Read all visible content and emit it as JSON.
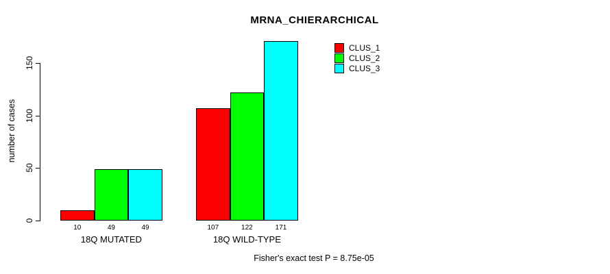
{
  "chart_data": {
    "type": "bar",
    "title": "MRNA_CHIERARCHICAL",
    "ylabel": "number of cases",
    "xlabel": "",
    "categories": [
      "18Q MUTATED",
      "18Q WILD-TYPE"
    ],
    "series": [
      {
        "name": "CLUS_1",
        "color": "#ff0000",
        "values": [
          10,
          107
        ]
      },
      {
        "name": "CLUS_2",
        "color": "#00ff00",
        "values": [
          49,
          122
        ]
      },
      {
        "name": "CLUS_3",
        "color": "#00ffff",
        "values": [
          49,
          171
        ]
      }
    ],
    "bar_value_labels": [
      [
        10,
        49,
        49
      ],
      [
        107,
        122,
        171
      ]
    ],
    "yticks": [
      0,
      50,
      100,
      150
    ],
    "ylim": [
      0,
      171
    ],
    "grid": false,
    "legend_position": "top-right",
    "annotation": "Fisher's exact test P = 8.75e-05",
    "axis_color": "#000000",
    "background_color": "#ffffff"
  }
}
